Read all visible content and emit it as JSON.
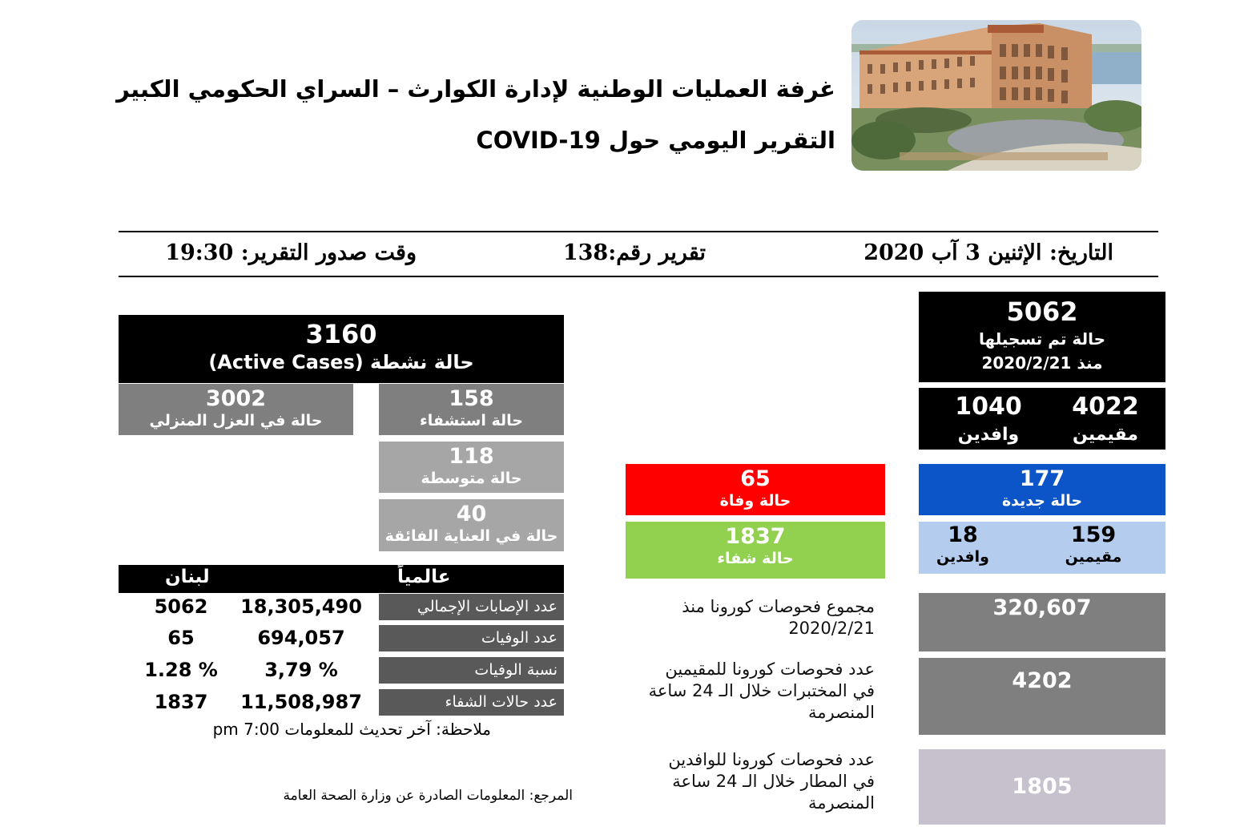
{
  "header": {
    "title_line1": "غرفة العمليات الوطنية لإدارة الكوارث – السراي الحكومي الكبير",
    "title_line2": "التقرير اليومي حول COVID-19"
  },
  "info_bar": {
    "date": "التاريخ: الإثنين 3 آب 2020",
    "report_number": "تقرير رقم:138",
    "report_time": "وقت صدور التقرير: 19:30"
  },
  "active": {
    "value": "3160",
    "label": "حالة نشطة (Active Cases)",
    "home_isolation": {
      "value": "3002",
      "label": "حالة في العزل المنزلي"
    },
    "hospitalized": {
      "value": "158",
      "label": "حالة استشفاء"
    },
    "moderate": {
      "value": "118",
      "label": "حالة متوسطة"
    },
    "icu": {
      "value": "40",
      "label": "حالة في العناية الفائقة"
    }
  },
  "registered": {
    "value": "5062",
    "label": "حالة تم تسجيلها",
    "since": "منذ 2020/2/21",
    "residents": {
      "value": "4022",
      "label": "مقيمين"
    },
    "arrivals": {
      "value": "1040",
      "label": "وافدين"
    }
  },
  "new_cases": {
    "value": "177",
    "label": "حالة جديدة",
    "residents": {
      "value": "159",
      "label": "مقيمين"
    },
    "arrivals": {
      "value": "18",
      "label": "وافدين"
    }
  },
  "deaths": {
    "value": "65",
    "label": "حالة وفاة"
  },
  "recoveries": {
    "value": "1837",
    "label": "حالة شفاء"
  },
  "comparison": {
    "col_global": "عالمياً",
    "col_lebanon": "لبنان",
    "rows": [
      {
        "label": "عدد الإصابات الإجمالي",
        "global": "18,305,490",
        "lebanon": "5062"
      },
      {
        "label": "عدد الوفيات",
        "global": "694,057",
        "lebanon": "65"
      },
      {
        "label": "نسبة الوفيات",
        "global": "3,79 %",
        "lebanon": "1.28 %"
      },
      {
        "label": "عدد حالات الشفاء",
        "global": "11,508,987",
        "lebanon": "1837"
      }
    ],
    "note": "ملاحظة: آخر تحديث للمعلومات 7:00 pm"
  },
  "tests": {
    "total": {
      "value": "320,607",
      "desc": [
        "مجموع فحوصات كورونا منذ",
        "2020/2/21"
      ]
    },
    "residents_24h": {
      "value": "4202",
      "desc": [
        "عدد فحوصات كورونا للمقيمين",
        "في المختبرات خلال الـ 24 ساعة",
        "المنصرمة"
      ]
    },
    "arrivals_24h": {
      "value": "1805",
      "desc": [
        "عدد فحوصات كورونا للوافدين",
        "في المطار خلال الـ 24 ساعة",
        "المنصرمة"
      ]
    }
  },
  "reference": "المرجع: المعلومات الصادرة عن وزارة الصحة العامة",
  "colors": {
    "black": "#000000",
    "dark_gray": "#7f7f7f",
    "mid_gray": "#a6a6a6",
    "blue": "#0b55c8",
    "light_blue": "#b4cdee",
    "red": "#ff0000",
    "green": "#92d050",
    "lavender": "#c7c1ce"
  }
}
